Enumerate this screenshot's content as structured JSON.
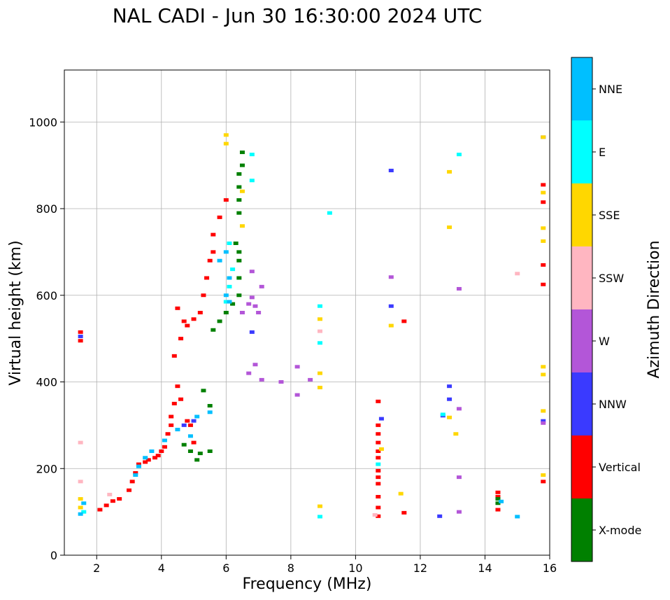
{
  "chart_data": {
    "type": "scatter",
    "title": "NAL CADI - Jun 30 16:30:00 2024 UTC",
    "xlabel": "Frequency (MHz)",
    "ylabel": "Virtual height (km)",
    "xlim": [
      1.0,
      16.0
    ],
    "ylim": [
      0,
      1120
    ],
    "xticks": [
      2,
      4,
      6,
      8,
      10,
      12,
      14,
      16
    ],
    "yticks": [
      0,
      200,
      400,
      600,
      800,
      1000
    ],
    "grid": true,
    "colorbar": {
      "label": "Azimuth Direction",
      "categories": [
        {
          "name": "X-mode",
          "color": "#008000"
        },
        {
          "name": "Vertical",
          "color": "#ff0000"
        },
        {
          "name": "NNW",
          "color": "#3a3aff"
        },
        {
          "name": "W",
          "color": "#b356d8"
        },
        {
          "name": "SSW",
          "color": "#ffb6c1"
        },
        {
          "name": "SSE",
          "color": "#ffd700"
        },
        {
          "name": "E",
          "color": "#00ffff"
        },
        {
          "name": "NNE",
          "color": "#00bfff"
        }
      ]
    },
    "series": [
      {
        "name": "Vertical",
        "points": [
          [
            1.5,
            495
          ],
          [
            1.5,
            515
          ],
          [
            2.1,
            105
          ],
          [
            2.3,
            115
          ],
          [
            2.5,
            125
          ],
          [
            2.7,
            130
          ],
          [
            3.0,
            150
          ],
          [
            3.1,
            170
          ],
          [
            3.2,
            190
          ],
          [
            3.3,
            210
          ],
          [
            3.5,
            215
          ],
          [
            3.6,
            220
          ],
          [
            3.8,
            225
          ],
          [
            3.9,
            230
          ],
          [
            4.0,
            240
          ],
          [
            4.1,
            250
          ],
          [
            4.2,
            280
          ],
          [
            4.3,
            300
          ],
          [
            4.3,
            320
          ],
          [
            4.4,
            350
          ],
          [
            4.5,
            390
          ],
          [
            4.6,
            360
          ],
          [
            4.8,
            310
          ],
          [
            4.9,
            300
          ],
          [
            5.0,
            260
          ],
          [
            4.7,
            540
          ],
          [
            4.8,
            530
          ],
          [
            5.0,
            545
          ],
          [
            5.2,
            560
          ],
          [
            5.3,
            600
          ],
          [
            5.4,
            640
          ],
          [
            5.6,
            700
          ],
          [
            5.6,
            740
          ],
          [
            5.8,
            780
          ],
          [
            6.0,
            820
          ],
          [
            5.5,
            680
          ],
          [
            4.5,
            570
          ],
          [
            4.6,
            500
          ],
          [
            4.4,
            460
          ],
          [
            10.7,
            90
          ],
          [
            10.7,
            110
          ],
          [
            10.7,
            135
          ],
          [
            10.7,
            165
          ],
          [
            10.7,
            180
          ],
          [
            10.7,
            195
          ],
          [
            10.7,
            225
          ],
          [
            10.7,
            240
          ],
          [
            10.7,
            260
          ],
          [
            10.7,
            280
          ],
          [
            10.7,
            300
          ],
          [
            10.7,
            355
          ],
          [
            11.5,
            98
          ],
          [
            11.5,
            540
          ],
          [
            14.4,
            105
          ],
          [
            14.4,
            135
          ],
          [
            14.4,
            145
          ],
          [
            15.8,
            170
          ],
          [
            15.8,
            625
          ],
          [
            15.8,
            670
          ],
          [
            15.8,
            815
          ],
          [
            15.8,
            855
          ]
        ]
      },
      {
        "name": "X-mode",
        "points": [
          [
            4.7,
            255
          ],
          [
            4.9,
            240
          ],
          [
            5.1,
            220
          ],
          [
            5.2,
            235
          ],
          [
            5.5,
            240
          ],
          [
            5.5,
            345
          ],
          [
            5.3,
            380
          ],
          [
            5.6,
            520
          ],
          [
            5.8,
            540
          ],
          [
            6.0,
            560
          ],
          [
            6.2,
            580
          ],
          [
            6.4,
            600
          ],
          [
            6.4,
            640
          ],
          [
            6.4,
            680
          ],
          [
            6.4,
            700
          ],
          [
            6.3,
            720
          ],
          [
            6.4,
            790
          ],
          [
            6.4,
            820
          ],
          [
            6.4,
            850
          ],
          [
            6.4,
            880
          ],
          [
            6.5,
            900
          ],
          [
            6.5,
            930
          ],
          [
            14.4,
            120
          ],
          [
            14.4,
            130
          ]
        ]
      },
      {
        "name": "NNW",
        "points": [
          [
            1.5,
            505
          ],
          [
            4.7,
            300
          ],
          [
            5.0,
            310
          ],
          [
            6.8,
            515
          ],
          [
            10.8,
            315
          ],
          [
            11.1,
            888
          ],
          [
            11.1,
            575
          ],
          [
            12.6,
            90
          ],
          [
            12.7,
            322
          ],
          [
            12.9,
            360
          ],
          [
            12.9,
            390
          ],
          [
            15.8,
            965
          ],
          [
            15.8,
            310
          ]
        ]
      },
      {
        "name": "W",
        "points": [
          [
            6.5,
            560
          ],
          [
            6.7,
            580
          ],
          [
            6.8,
            595
          ],
          [
            6.9,
            575
          ],
          [
            7.0,
            560
          ],
          [
            7.1,
            620
          ],
          [
            6.8,
            655
          ],
          [
            6.7,
            420
          ],
          [
            6.9,
            440
          ],
          [
            7.1,
            405
          ],
          [
            7.7,
            400
          ],
          [
            8.2,
            435
          ],
          [
            8.2,
            370
          ],
          [
            8.6,
            405
          ],
          [
            11.1,
            642
          ],
          [
            13.2,
            338
          ],
          [
            13.2,
            180
          ],
          [
            13.2,
            100
          ],
          [
            13.2,
            615
          ],
          [
            15.8,
            305
          ]
        ]
      },
      {
        "name": "SSW",
        "points": [
          [
            1.5,
            170
          ],
          [
            1.5,
            260
          ],
          [
            2.4,
            140
          ],
          [
            8.9,
            517
          ],
          [
            10.6,
            93
          ],
          [
            15.0,
            650
          ]
        ]
      },
      {
        "name": "SSE",
        "points": [
          [
            1.5,
            110
          ],
          [
            1.5,
            130
          ],
          [
            6.0,
            970
          ],
          [
            6.0,
            950
          ],
          [
            6.5,
            760
          ],
          [
            6.5,
            840
          ],
          [
            8.9,
            545
          ],
          [
            8.9,
            420
          ],
          [
            8.9,
            113
          ],
          [
            8.9,
            387
          ],
          [
            10.8,
            245
          ],
          [
            11.1,
            530
          ],
          [
            11.4,
            142
          ],
          [
            12.9,
            885
          ],
          [
            12.9,
            757
          ],
          [
            12.9,
            318
          ],
          [
            13.1,
            280
          ],
          [
            15.8,
            965
          ],
          [
            15.8,
            837
          ],
          [
            15.8,
            755
          ],
          [
            15.8,
            725
          ],
          [
            15.8,
            435
          ],
          [
            15.8,
            417
          ],
          [
            15.8,
            333
          ],
          [
            15.8,
            185
          ]
        ]
      },
      {
        "name": "E",
        "points": [
          [
            1.6,
            100
          ],
          [
            6.0,
            585
          ],
          [
            6.1,
            620
          ],
          [
            6.2,
            660
          ],
          [
            6.1,
            720
          ],
          [
            6.8,
            925
          ],
          [
            6.8,
            865
          ],
          [
            8.9,
            575
          ],
          [
            8.9,
            490
          ],
          [
            8.9,
            89
          ],
          [
            9.2,
            790
          ],
          [
            10.7,
            210
          ],
          [
            12.7,
            325
          ],
          [
            13.2,
            925
          ]
        ]
      },
      {
        "name": "NNE",
        "points": [
          [
            1.5,
            95
          ],
          [
            1.6,
            120
          ],
          [
            3.2,
            185
          ],
          [
            3.3,
            205
          ],
          [
            3.5,
            225
          ],
          [
            3.7,
            240
          ],
          [
            4.1,
            265
          ],
          [
            4.5,
            290
          ],
          [
            4.9,
            275
          ],
          [
            5.1,
            320
          ],
          [
            5.5,
            330
          ],
          [
            6.1,
            585
          ],
          [
            6.0,
            600
          ],
          [
            6.1,
            640
          ],
          [
            5.8,
            680
          ],
          [
            6.0,
            700
          ],
          [
            14.5,
            124
          ],
          [
            15.0,
            89
          ]
        ]
      }
    ]
  }
}
